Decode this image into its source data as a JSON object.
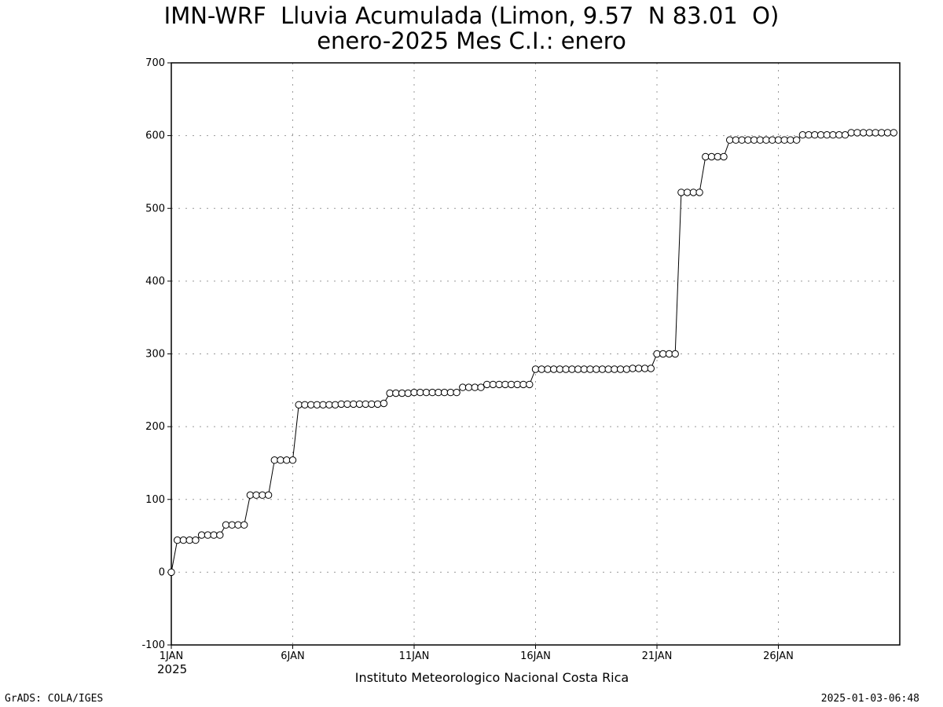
{
  "footer_left": "GrADS: COLA/IGES",
  "footer_right": "2025-01-03-06:48",
  "chart_data": {
    "type": "line",
    "title": "IMN-WRF  Lluvia Acumulada (Limon, 9.57  N 83.01  O)",
    "subtitle": "enero-2025 Mes C.I.: enero",
    "xlabel": "Instituto Meteorologico Nacional Costa Rica",
    "ylabel": "",
    "x_start_label": "2025",
    "ylim": [
      -100,
      700
    ],
    "yticks": [
      -100,
      0,
      100,
      200,
      300,
      400,
      500,
      600,
      700
    ],
    "x_range": [
      "2025-01-01 00:00",
      "2025-01-31 00:00"
    ],
    "xticks": [
      {
        "label": "1JAN",
        "date": "2025-01-01"
      },
      {
        "label": "6JAN",
        "date": "2025-01-06"
      },
      {
        "label": "11JAN",
        "date": "2025-01-11"
      },
      {
        "label": "16JAN",
        "date": "2025-01-16"
      },
      {
        "label": "21JAN",
        "date": "2025-01-21"
      },
      {
        "label": "26JAN",
        "date": "2025-01-26"
      }
    ],
    "grid": true,
    "marker": "open-circle",
    "series": [
      {
        "name": "",
        "x_start": "2025-01-01 00:00",
        "x_step_hours": 6,
        "values": [
          0,
          44,
          44,
          44,
          44,
          51,
          51,
          51,
          51,
          65,
          65,
          65,
          65,
          106,
          106,
          106,
          106,
          154,
          154,
          154,
          154,
          230,
          230,
          230,
          230,
          230,
          230,
          230,
          231,
          231,
          231,
          231,
          231,
          231,
          231,
          232,
          246,
          246,
          246,
          246,
          247,
          247,
          247,
          247,
          247,
          247,
          247,
          247,
          254,
          254,
          254,
          254,
          258,
          258,
          258,
          258,
          258,
          258,
          258,
          258,
          279,
          279,
          279,
          279,
          279,
          279,
          279,
          279,
          279,
          279,
          279,
          279,
          279,
          279,
          279,
          279,
          280,
          280,
          280,
          280,
          300,
          300,
          300,
          300,
          522,
          522,
          522,
          522,
          571,
          571,
          571,
          571,
          594,
          594,
          594,
          594,
          594,
          594,
          594,
          594,
          594,
          594,
          594,
          594,
          601,
          601,
          601,
          601,
          601,
          601,
          601,
          601,
          604,
          604,
          604,
          604,
          604,
          604,
          604,
          604
        ]
      }
    ]
  }
}
